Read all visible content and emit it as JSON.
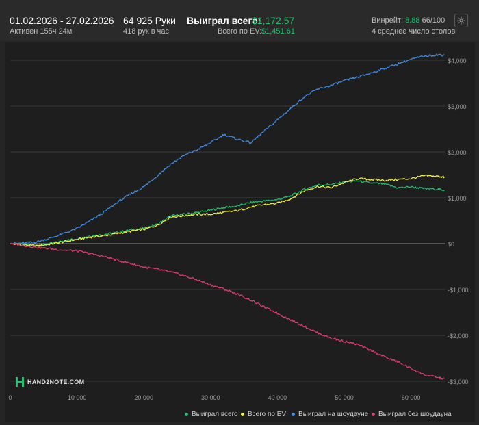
{
  "header": {
    "date_range": "01.02.2026 - 27.02.2026",
    "active_time": "Активен 155ч 24м",
    "hands": "64 925 Руки",
    "hands_per_hour": "418 рук в час",
    "won_total_label": "Выиграл всего:",
    "won_total_value": "$1,172.57",
    "ev_total_label": "Всего по EV:",
    "ev_total_value": "$1,451.61",
    "winrate_label": "Винрейт:",
    "winrate_value": "8.88",
    "winrate_suffix": "66/100",
    "avg_tables": "4 среднее число столов",
    "settings_icon": "gear-icon"
  },
  "logo": {
    "text": "HAND2NOTE.COM",
    "icon": "hand2note-logo-icon"
  },
  "colors": {
    "won_total": "#20c070",
    "ev_total": "#f2f23a",
    "showdown": "#3d8ee6",
    "non_showdown": "#e23d6d",
    "win_green": "#20c06f"
  },
  "chart_data": {
    "type": "line",
    "x_ticks": [
      0,
      10000,
      20000,
      30000,
      40000,
      50000,
      60000
    ],
    "x_tick_labels": [
      "0",
      "10 000",
      "20 000",
      "30 000",
      "40 000",
      "50 000",
      "60 000"
    ],
    "y_ticks": [
      -3000,
      -2000,
      -1000,
      0,
      1000,
      2000,
      3000,
      4000
    ],
    "y_tick_labels": [
      "-$3,000",
      "-$2,000",
      "-$1,000",
      "$0",
      "$1,000",
      "$2,000",
      "$3,000",
      "$4,000"
    ],
    "xlim": [
      0,
      65000
    ],
    "ylim": [
      -3050,
      4200
    ],
    "grid": true,
    "legend_position": "bottom-right",
    "series": [
      {
        "name": "Выиграл всего",
        "color": "#20c070",
        "x": [
          0,
          2000,
          4000,
          6000,
          8000,
          10000,
          12000,
          14000,
          16000,
          18000,
          20000,
          22000,
          24000,
          26000,
          28000,
          30000,
          32000,
          34000,
          36000,
          38000,
          40000,
          42000,
          44000,
          46000,
          48000,
          50000,
          52000,
          54000,
          56000,
          58000,
          60000,
          62000,
          64000,
          65000
        ],
        "y": [
          0,
          -20,
          -40,
          0,
          60,
          110,
          170,
          200,
          240,
          300,
          330,
          420,
          600,
          640,
          680,
          730,
          790,
          820,
          900,
          930,
          960,
          1040,
          1180,
          1280,
          1290,
          1340,
          1370,
          1320,
          1300,
          1220,
          1240,
          1200,
          1190,
          1170
        ]
      },
      {
        "name": "Всего по EV",
        "color": "#f2f23a",
        "x": [
          0,
          2000,
          4000,
          6000,
          8000,
          10000,
          12000,
          14000,
          16000,
          18000,
          20000,
          22000,
          24000,
          26000,
          28000,
          30000,
          32000,
          34000,
          36000,
          38000,
          40000,
          42000,
          44000,
          46000,
          48000,
          50000,
          52000,
          54000,
          56000,
          58000,
          60000,
          62000,
          64000,
          65000
        ],
        "y": [
          0,
          -30,
          -50,
          -10,
          40,
          90,
          140,
          170,
          220,
          270,
          310,
          400,
          580,
          610,
          640,
          640,
          680,
          720,
          800,
          850,
          880,
          980,
          1150,
          1250,
          1220,
          1330,
          1420,
          1400,
          1380,
          1400,
          1420,
          1480,
          1470,
          1450
        ]
      },
      {
        "name": "Выиграл на шоудауне",
        "color": "#3d8ee6",
        "x": [
          0,
          2000,
          4000,
          6000,
          8000,
          10000,
          12000,
          14000,
          16000,
          18000,
          20000,
          22000,
          24000,
          26000,
          28000,
          30000,
          32000,
          34000,
          36000,
          38000,
          40000,
          42000,
          44000,
          46000,
          48000,
          50000,
          52000,
          54000,
          56000,
          58000,
          60000,
          62000,
          64000,
          65000
        ],
        "y": [
          0,
          10,
          40,
          120,
          220,
          330,
          500,
          680,
          900,
          1080,
          1240,
          1480,
          1730,
          1920,
          2050,
          2200,
          2380,
          2280,
          2200,
          2450,
          2700,
          2950,
          3200,
          3370,
          3450,
          3550,
          3630,
          3720,
          3820,
          3920,
          4020,
          4090,
          4120,
          4110
        ]
      },
      {
        "name": "Выиграл без шоудауна",
        "color": "#e23d6d",
        "x": [
          0,
          2000,
          4000,
          6000,
          8000,
          10000,
          12000,
          14000,
          16000,
          18000,
          20000,
          22000,
          24000,
          26000,
          28000,
          30000,
          32000,
          34000,
          36000,
          38000,
          40000,
          42000,
          44000,
          46000,
          48000,
          50000,
          52000,
          54000,
          56000,
          58000,
          60000,
          62000,
          64000,
          65000
        ],
        "y": [
          0,
          -40,
          -80,
          -110,
          -140,
          -160,
          -220,
          -280,
          -360,
          -430,
          -510,
          -560,
          -620,
          -700,
          -790,
          -900,
          -990,
          -1100,
          -1230,
          -1380,
          -1520,
          -1660,
          -1800,
          -1940,
          -2060,
          -2130,
          -2200,
          -2330,
          -2460,
          -2580,
          -2720,
          -2860,
          -2920,
          -2950
        ]
      }
    ]
  }
}
